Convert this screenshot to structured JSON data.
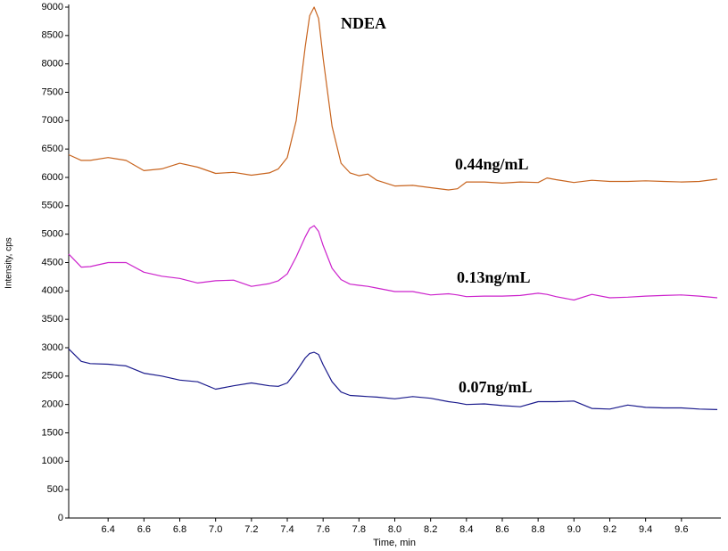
{
  "chart_data": {
    "type": "line",
    "xlabel": "Time, min",
    "ylabel": "Intensity, cps",
    "annotation": "NDEA",
    "x": [
      6.18,
      6.25,
      6.3,
      6.4,
      6.5,
      6.6,
      6.7,
      6.8,
      6.9,
      7.0,
      7.1,
      7.2,
      7.3,
      7.35,
      7.4,
      7.45,
      7.5,
      7.525,
      7.55,
      7.575,
      7.6,
      7.65,
      7.7,
      7.75,
      7.8,
      7.85,
      7.9,
      8.0,
      8.1,
      8.2,
      8.3,
      8.35,
      8.4,
      8.5,
      8.6,
      8.7,
      8.8,
      8.85,
      8.9,
      9.0,
      9.1,
      9.2,
      9.3,
      9.4,
      9.5,
      9.6,
      9.7,
      9.8
    ],
    "series": [
      {
        "name": "0.44ng/mL",
        "color": "#c8641e",
        "values": [
          6400,
          6300,
          6300,
          6350,
          6300,
          6120,
          6150,
          6250,
          6180,
          6070,
          6090,
          6040,
          6080,
          6150,
          6350,
          7000,
          8300,
          8850,
          9000,
          8800,
          8100,
          6900,
          6250,
          6080,
          6030,
          6060,
          5950,
          5850,
          5860,
          5820,
          5780,
          5800,
          5920,
          5920,
          5900,
          5920,
          5910,
          5990,
          5960,
          5910,
          5950,
          5930,
          5930,
          5940,
          5930,
          5920,
          5930,
          5970
        ]
      },
      {
        "name": "0.13ng/mL",
        "color": "#cc22cc",
        "values": [
          4650,
          4420,
          4430,
          4500,
          4500,
          4330,
          4260,
          4220,
          4140,
          4180,
          4190,
          4080,
          4130,
          4180,
          4300,
          4600,
          4950,
          5100,
          5150,
          5050,
          4800,
          4400,
          4200,
          4120,
          4100,
          4080,
          4050,
          3990,
          3990,
          3930,
          3950,
          3930,
          3900,
          3910,
          3910,
          3920,
          3960,
          3940,
          3900,
          3840,
          3940,
          3880,
          3890,
          3910,
          3920,
          3930,
          3910,
          3880
        ]
      },
      {
        "name": "0.07ng/mL",
        "color": "#1a1a8c",
        "values": [
          2980,
          2760,
          2720,
          2710,
          2680,
          2550,
          2500,
          2430,
          2400,
          2270,
          2330,
          2380,
          2330,
          2320,
          2380,
          2580,
          2820,
          2900,
          2920,
          2880,
          2700,
          2400,
          2220,
          2160,
          2150,
          2140,
          2130,
          2100,
          2140,
          2110,
          2050,
          2030,
          2000,
          2010,
          1980,
          1960,
          2050,
          2050,
          2050,
          2060,
          1930,
          1920,
          1990,
          1950,
          1940,
          1940,
          1920,
          1910
        ]
      }
    ],
    "xlim": [
      6.18,
      9.82
    ],
    "ylim": [
      0,
      9000
    ],
    "xticks": [
      6.4,
      6.6,
      6.8,
      {
        "value": 7.0,
        "label": "7.0"
      },
      7.2,
      7.4,
      7.6,
      7.8,
      {
        "value": 8.0,
        "label": "8.0"
      },
      8.2,
      8.4,
      8.6,
      8.8,
      {
        "value": 9.0,
        "label": "9.0"
      },
      9.2,
      9.4,
      9.6
    ],
    "yticks": [
      0,
      500,
      1000,
      1500,
      2000,
      2500,
      3000,
      3500,
      4000,
      4500,
      5000,
      5500,
      6000,
      6500,
      7000,
      7500,
      8000,
      8500,
      9000
    ]
  }
}
